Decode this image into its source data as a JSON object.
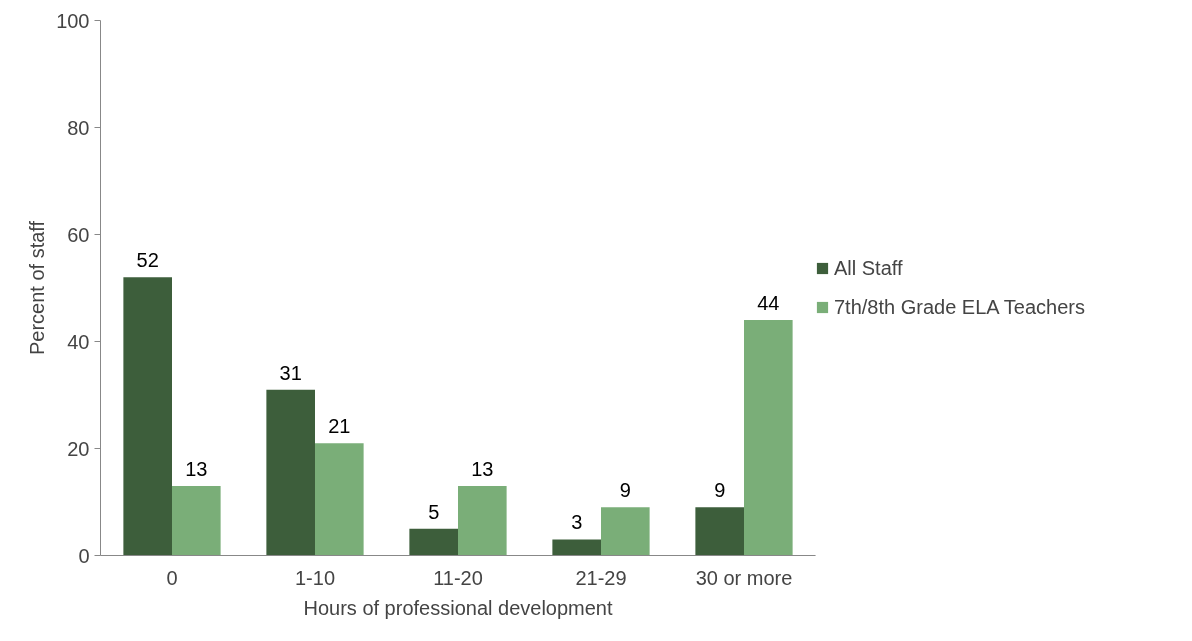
{
  "chart_data": {
    "type": "bar",
    "xlabel": "Hours of professional development",
    "ylabel": "Percent of staff",
    "categories": [
      "0",
      "1-10",
      "11-20",
      "21-29",
      "30 or more"
    ],
    "series": [
      {
        "name": "All Staff",
        "color": "#3d5e3b",
        "values": [
          52,
          31,
          5,
          3,
          9
        ]
      },
      {
        "name": "7th/8th Grade ELA Teachers",
        "color": "#7aae78",
        "values": [
          13,
          21,
          13,
          9,
          44
        ]
      }
    ],
    "ylim": [
      0,
      100
    ],
    "yticks": [
      0,
      20,
      40,
      60,
      80,
      100
    ],
    "data_labels": true,
    "legend": "right"
  }
}
